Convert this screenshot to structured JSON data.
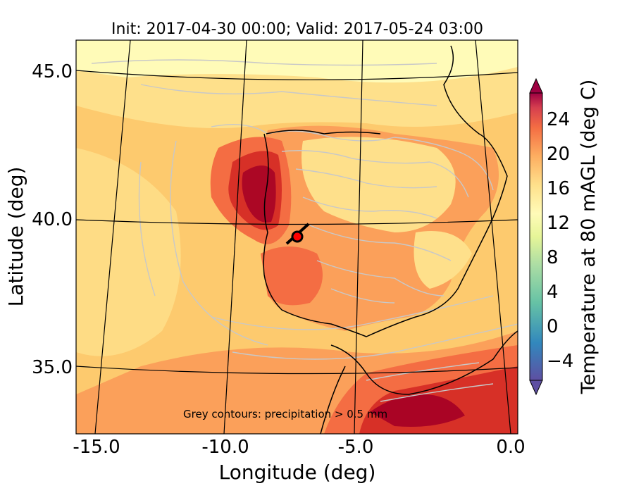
{
  "title": "Init: 2017-04-30 00:00; Valid: 2017-05-24 03:00",
  "xlabel": "Longitude (deg)",
  "ylabel": "Latitude (deg)",
  "x_ticks": [
    "-15.0",
    "-10.0",
    "-5.0",
    "0.0"
  ],
  "y_ticks": [
    "45.0",
    "40.0",
    "35.0"
  ],
  "annotation": "Grey contours: precipitation  > 0.5 mm",
  "colorbar": {
    "label": "Temperature at 80 mAGL (deg C)",
    "ticks": [
      "24",
      "20",
      "16",
      "12",
      "8",
      "4",
      "0",
      "−4"
    ],
    "range": [
      -7,
      27
    ]
  },
  "colors": {
    "cold": "#fffbb8",
    "mild": "#fee08b",
    "ocean": "#fdca6e",
    "warm": "#fba05a",
    "hot": "#f46d43",
    "hotter": "#d73027",
    "hottest": "#a50026",
    "precip_contour": "#c8c8c8"
  },
  "marker": {
    "lon": -7.6,
    "lat": 39.3,
    "color": "#ff0000"
  }
}
